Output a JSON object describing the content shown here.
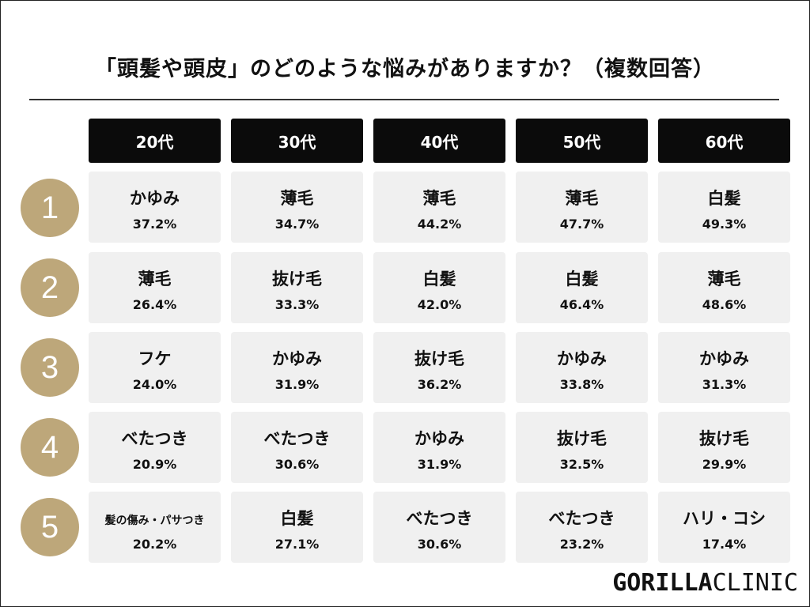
{
  "title": "「頭髪や頭皮」のどのような悩みがありますか？（複数回答）",
  "logo": {
    "part1": "GORILLA",
    "part2": "CLINIC"
  },
  "colors": {
    "header_bg": "#0b0b0b",
    "rank_circle": "#bda77a",
    "cell_bg": "#f0f0f0"
  },
  "chart_data": {
    "type": "table",
    "title": "「頭髪や頭皮」のどのような悩みがありますか？（複数回答）",
    "columns": [
      "20代",
      "30代",
      "40代",
      "50代",
      "60代"
    ],
    "ranks": [
      "1",
      "2",
      "3",
      "4",
      "5"
    ],
    "rows": [
      [
        {
          "concern": "かゆみ",
          "pct": "37.2%"
        },
        {
          "concern": "薄毛",
          "pct": "34.7%"
        },
        {
          "concern": "薄毛",
          "pct": "44.2%"
        },
        {
          "concern": "薄毛",
          "pct": "47.7%"
        },
        {
          "concern": "白髪",
          "pct": "49.3%"
        }
      ],
      [
        {
          "concern": "薄毛",
          "pct": "26.4%"
        },
        {
          "concern": "抜け毛",
          "pct": "33.3%"
        },
        {
          "concern": "白髪",
          "pct": "42.0%"
        },
        {
          "concern": "白髪",
          "pct": "46.4%"
        },
        {
          "concern": "薄毛",
          "pct": "48.6%"
        }
      ],
      [
        {
          "concern": "フケ",
          "pct": "24.0%"
        },
        {
          "concern": "かゆみ",
          "pct": "31.9%"
        },
        {
          "concern": "抜け毛",
          "pct": "36.2%"
        },
        {
          "concern": "かゆみ",
          "pct": "33.8%"
        },
        {
          "concern": "かゆみ",
          "pct": "31.3%"
        }
      ],
      [
        {
          "concern": "べたつき",
          "pct": "20.9%"
        },
        {
          "concern": "べたつき",
          "pct": "30.6%"
        },
        {
          "concern": "かゆみ",
          "pct": "31.9%"
        },
        {
          "concern": "抜け毛",
          "pct": "32.5%"
        },
        {
          "concern": "抜け毛",
          "pct": "29.9%"
        }
      ],
      [
        {
          "concern": "髪の傷み・パサつき",
          "pct": "20.2%"
        },
        {
          "concern": "白髪",
          "pct": "27.1%"
        },
        {
          "concern": "べたつき",
          "pct": "30.6%"
        },
        {
          "concern": "べたつき",
          "pct": "23.2%"
        },
        {
          "concern": "ハリ・コシ",
          "pct": "17.4%"
        }
      ]
    ]
  }
}
